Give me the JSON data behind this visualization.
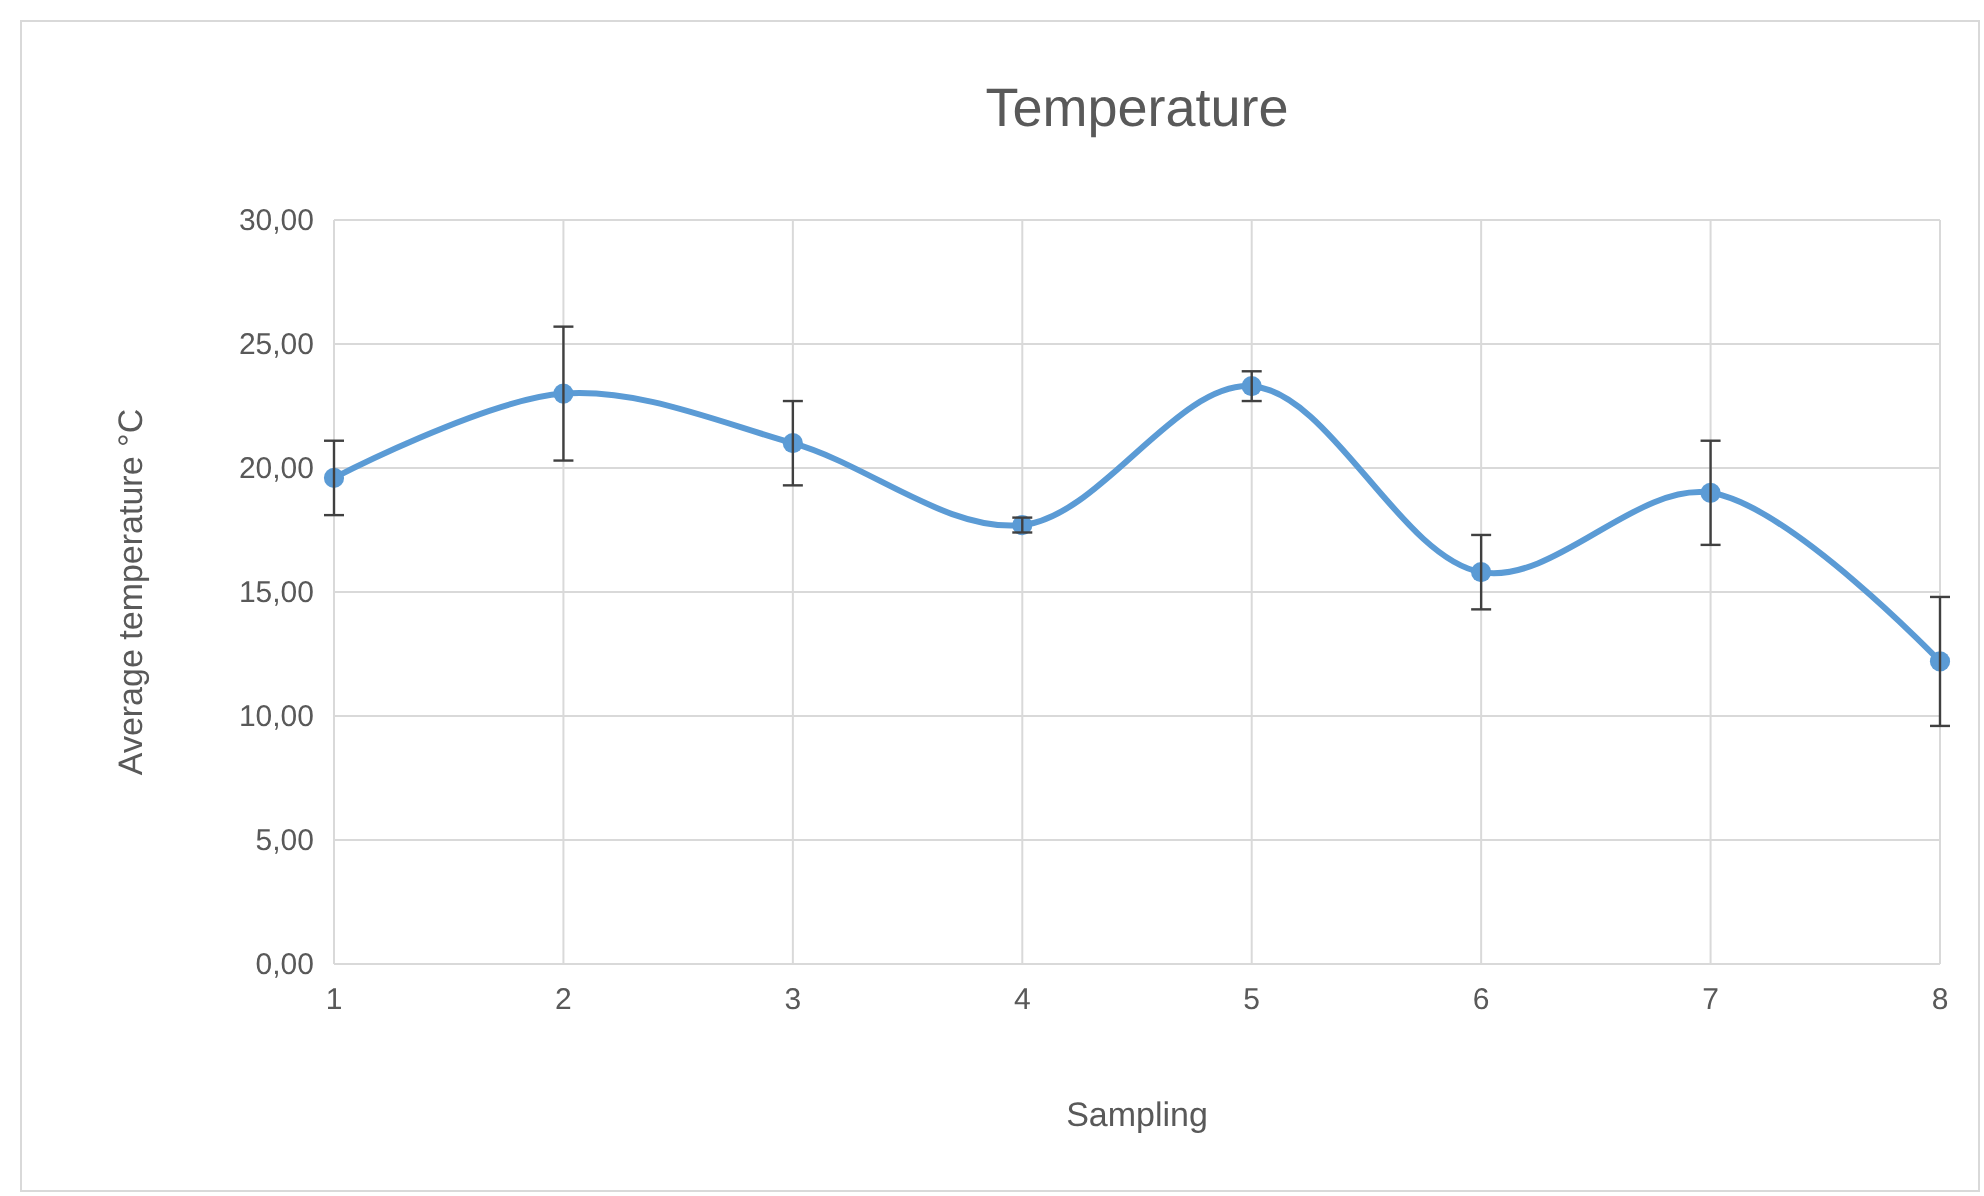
{
  "chart_data": {
    "type": "line",
    "title": "Temperature",
    "xlabel": "Sampling",
    "ylabel": "Average temperature °C",
    "x": [
      1,
      2,
      3,
      4,
      5,
      6,
      7,
      8
    ],
    "series": [
      {
        "color": "#5b9bd5",
        "values": [
          19.6,
          23.0,
          21.0,
          17.7,
          23.3,
          15.8,
          19.0,
          12.2
        ],
        "errors": [
          1.5,
          2.7,
          1.7,
          0.3,
          0.6,
          1.5,
          2.1,
          2.6
        ]
      }
    ],
    "xlim": [
      1,
      8
    ],
    "xticks": [
      1,
      2,
      3,
      4,
      5,
      6,
      7,
      8
    ],
    "ylim": [
      0,
      30
    ],
    "yticks": [
      {
        "value": 0,
        "label": "0,00"
      },
      {
        "value": 5,
        "label": "5,00"
      },
      {
        "value": 10,
        "label": "10,00"
      },
      {
        "value": 15,
        "label": "15,00"
      },
      {
        "value": 20,
        "label": "20,00"
      },
      {
        "value": 25,
        "label": "25,00"
      },
      {
        "value": 30,
        "label": "30,00"
      }
    ],
    "grid": true,
    "marker": "circle",
    "line_style": "solid"
  }
}
